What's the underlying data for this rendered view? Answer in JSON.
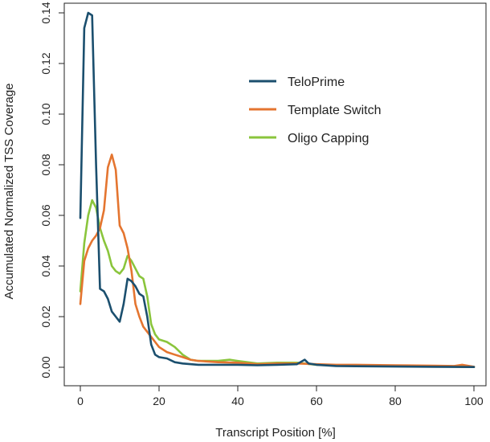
{
  "chart_data": {
    "type": "line",
    "title": "",
    "xlabel": "Transcript Position [%]",
    "ylabel": "Accumulated Normalized TSS Coverage",
    "xlim": [
      0,
      100
    ],
    "ylim": [
      0,
      0.14
    ],
    "x_ticks": [
      "0",
      "20",
      "40",
      "60",
      "80",
      "100"
    ],
    "y_ticks": [
      "0.00",
      "0.02",
      "0.04",
      "0.06",
      "0.08",
      "0.10",
      "0.12",
      "0.14"
    ],
    "grid": false,
    "legend_position": "top-right",
    "series": [
      {
        "name": "TeloPrime",
        "color": "#1b4f6e",
        "points": [
          [
            0,
            0.059
          ],
          [
            1,
            0.134
          ],
          [
            2,
            0.14
          ],
          [
            3,
            0.139
          ],
          [
            4,
            0.08
          ],
          [
            5,
            0.031
          ],
          [
            6,
            0.03
          ],
          [
            7,
            0.027
          ],
          [
            8,
            0.022
          ],
          [
            9,
            0.02
          ],
          [
            10,
            0.018
          ],
          [
            11,
            0.025
          ],
          [
            12,
            0.035
          ],
          [
            13,
            0.034
          ],
          [
            14,
            0.032
          ],
          [
            15,
            0.029
          ],
          [
            16,
            0.028
          ],
          [
            17,
            0.02
          ],
          [
            18,
            0.009
          ],
          [
            19,
            0.005
          ],
          [
            20,
            0.004
          ],
          [
            22,
            0.0035
          ],
          [
            24,
            0.002
          ],
          [
            26,
            0.0015
          ],
          [
            30,
            0.001
          ],
          [
            35,
            0.001
          ],
          [
            40,
            0.001
          ],
          [
            45,
            0.0008
          ],
          [
            50,
            0.001
          ],
          [
            55,
            0.0012
          ],
          [
            57,
            0.003
          ],
          [
            58,
            0.0015
          ],
          [
            60,
            0.001
          ],
          [
            65,
            0.0005
          ],
          [
            70,
            0.0004
          ],
          [
            80,
            0.0003
          ],
          [
            90,
            0.0002
          ],
          [
            100,
            0.0001
          ]
        ]
      },
      {
        "name": "Template Switch",
        "color": "#e47530",
        "points": [
          [
            0,
            0.025
          ],
          [
            1,
            0.042
          ],
          [
            2,
            0.047
          ],
          [
            3,
            0.05
          ],
          [
            4,
            0.052
          ],
          [
            5,
            0.055
          ],
          [
            6,
            0.062
          ],
          [
            7,
            0.079
          ],
          [
            8,
            0.084
          ],
          [
            9,
            0.078
          ],
          [
            10,
            0.056
          ],
          [
            11,
            0.053
          ],
          [
            12,
            0.047
          ],
          [
            13,
            0.038
          ],
          [
            14,
            0.025
          ],
          [
            15,
            0.02
          ],
          [
            16,
            0.016
          ],
          [
            17,
            0.014
          ],
          [
            18,
            0.012
          ],
          [
            19,
            0.01
          ],
          [
            20,
            0.008
          ],
          [
            22,
            0.006
          ],
          [
            24,
            0.005
          ],
          [
            26,
            0.004
          ],
          [
            28,
            0.003
          ],
          [
            30,
            0.0025
          ],
          [
            35,
            0.002
          ],
          [
            40,
            0.0018
          ],
          [
            45,
            0.0012
          ],
          [
            50,
            0.0015
          ],
          [
            55,
            0.0015
          ],
          [
            60,
            0.0012
          ],
          [
            65,
            0.001
          ],
          [
            70,
            0.001
          ],
          [
            80,
            0.0008
          ],
          [
            90,
            0.0006
          ],
          [
            95,
            0.0005
          ],
          [
            97,
            0.001
          ],
          [
            100,
            0.0002
          ]
        ]
      },
      {
        "name": "Oligo Capping",
        "color": "#8ac53c",
        "points": [
          [
            0,
            0.03
          ],
          [
            1,
            0.049
          ],
          [
            2,
            0.06
          ],
          [
            3,
            0.066
          ],
          [
            4,
            0.063
          ],
          [
            5,
            0.055
          ],
          [
            6,
            0.05
          ],
          [
            7,
            0.046
          ],
          [
            8,
            0.04
          ],
          [
            9,
            0.038
          ],
          [
            10,
            0.037
          ],
          [
            11,
            0.039
          ],
          [
            12,
            0.044
          ],
          [
            13,
            0.042
          ],
          [
            14,
            0.039
          ],
          [
            15,
            0.036
          ],
          [
            16,
            0.035
          ],
          [
            17,
            0.028
          ],
          [
            18,
            0.017
          ],
          [
            19,
            0.013
          ],
          [
            20,
            0.011
          ],
          [
            22,
            0.01
          ],
          [
            24,
            0.008
          ],
          [
            26,
            0.005
          ],
          [
            28,
            0.003
          ],
          [
            30,
            0.0025
          ],
          [
            35,
            0.0025
          ],
          [
            38,
            0.003
          ],
          [
            40,
            0.0025
          ],
          [
            45,
            0.0015
          ],
          [
            50,
            0.0018
          ],
          [
            55,
            0.0018
          ],
          [
            60,
            0.001
          ],
          [
            65,
            0.0008
          ],
          [
            70,
            0.0006
          ],
          [
            80,
            0.0004
          ],
          [
            90,
            0.0003
          ],
          [
            100,
            0.0002
          ]
        ]
      }
    ]
  }
}
